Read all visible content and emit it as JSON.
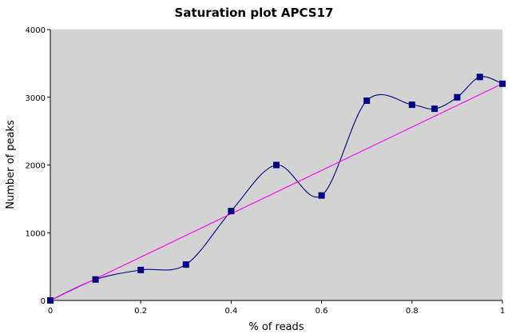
{
  "chart_data": {
    "type": "line",
    "title": "Saturation plot APCS17",
    "xlabel": "% of reads",
    "ylabel": "Number of peaks",
    "xlim": [
      0,
      1
    ],
    "ylim": [
      0,
      4000
    ],
    "x_ticks": [
      0,
      0.2,
      0.4,
      0.6,
      0.8,
      1
    ],
    "x_tick_labels": [
      "0",
      "0.2",
      "0.4",
      "0.6",
      "0.8",
      "1"
    ],
    "y_ticks": [
      0,
      1000,
      2000,
      3000,
      4000
    ],
    "y_tick_labels": [
      "0",
      "1000",
      "2000",
      "3000",
      "4000"
    ],
    "plot_background": "#d3d3d3",
    "grid": false,
    "legend": "none",
    "series": [
      {
        "style": "smoothed line with square markers",
        "color": "#000080",
        "x": [
          0,
          0.1,
          0.2,
          0.3,
          0.4,
          0.5,
          0.6,
          0.7,
          0.8,
          0.85,
          0.9,
          0.95,
          1.0
        ],
        "y": [
          0,
          310,
          450,
          530,
          1320,
          2000,
          1550,
          2950,
          2890,
          2830,
          3000,
          3300,
          3200
        ]
      },
      {
        "style": "trend line",
        "color": "#ff00ff",
        "x": [
          0,
          1
        ],
        "y": [
          0,
          3200
        ]
      }
    ]
  }
}
